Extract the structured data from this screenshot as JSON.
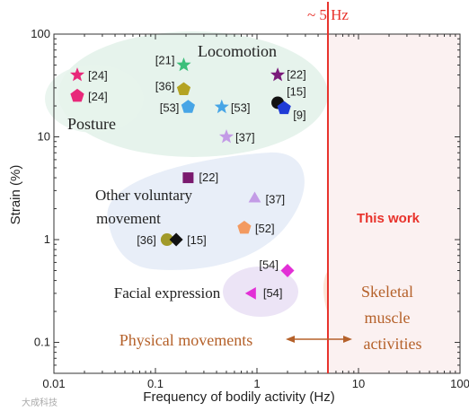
{
  "chart_data": {
    "type": "scatter",
    "xlabel": "Frequency of bodily activity (Hz)",
    "ylabel": "Strain (%)",
    "xscale": "log",
    "yscale": "log",
    "xlim": [
      0.01,
      100
    ],
    "ylim": [
      0.05,
      100
    ],
    "xticks": [
      {
        "value": 0.01,
        "label": "0.01"
      },
      {
        "value": 0.1,
        "label": "0.1"
      },
      {
        "value": 1,
        "label": "1"
      },
      {
        "value": 10,
        "label": "10"
      },
      {
        "value": 100,
        "label": "100"
      }
    ],
    "yticks": [
      {
        "value": 0.1,
        "label": "0.1"
      },
      {
        "value": 1,
        "label": "1"
      },
      {
        "value": 10,
        "label": "10"
      },
      {
        "value": 100,
        "label": "100"
      }
    ],
    "threshold": {
      "x": 5,
      "label": "~ 5 Hz",
      "color": "#e8322b"
    },
    "this_work_label": "This work",
    "regions": [
      {
        "label": "Locomotion",
        "color": "#e6f3ec"
      },
      {
        "label": "Posture",
        "color": "#e6f3ec"
      },
      {
        "label": "Other voluntary",
        "color": "#e8eef8"
      },
      {
        "label": "movement",
        "color": "#e8eef8"
      },
      {
        "label": "Facial expression",
        "color": "#ece4f6"
      },
      {
        "label": "Skeletal",
        "color": "#fbe6d8"
      },
      {
        "label": "muscle",
        "color": "#fbe6d8"
      },
      {
        "label": "activities",
        "color": "#fbe6d8"
      }
    ],
    "physical_movements_label": "Physical movements",
    "points": [
      {
        "x": 0.017,
        "y": 40,
        "marker": "star",
        "color": "#e8287a",
        "label": "[24]"
      },
      {
        "x": 0.017,
        "y": 25,
        "marker": "pentagon",
        "color": "#e8287a",
        "label": "[24]"
      },
      {
        "x": 0.19,
        "y": 50,
        "marker": "star",
        "color": "#3cbf7a",
        "label": "[21]"
      },
      {
        "x": 0.19,
        "y": 29,
        "marker": "pentagon",
        "color": "#b4a323",
        "label": "[36]"
      },
      {
        "x": 0.21,
        "y": 19.5,
        "marker": "pentagon",
        "color": "#47a5e6",
        "label": "[53]"
      },
      {
        "x": 0.45,
        "y": 19.5,
        "marker": "star",
        "color": "#47a5e6",
        "label": "[53]"
      },
      {
        "x": 0.5,
        "y": 10,
        "marker": "star",
        "color": "#c39be6",
        "label": "[37]"
      },
      {
        "x": 1.6,
        "y": 40,
        "marker": "star",
        "color": "#7a1a7a",
        "label": "[22]"
      },
      {
        "x": 1.6,
        "y": 21.5,
        "marker": "circle",
        "color": "#111111",
        "label": "[15]"
      },
      {
        "x": 1.85,
        "y": 19,
        "marker": "pentagon",
        "color": "#1f3bd6",
        "label": "[9]"
      },
      {
        "x": 0.21,
        "y": 4,
        "marker": "square",
        "color": "#7a1a6e",
        "label": "[22]"
      },
      {
        "x": 0.95,
        "y": 2.5,
        "marker": "triangle-up",
        "color": "#c39be6",
        "label": "[37]"
      },
      {
        "x": 0.75,
        "y": 1.3,
        "marker": "pentagon",
        "color": "#f39a60",
        "label": "[52]"
      },
      {
        "x": 0.13,
        "y": 1.0,
        "marker": "circle",
        "color": "#a19a2a",
        "label": "[36]"
      },
      {
        "x": 0.16,
        "y": 1.0,
        "marker": "diamond",
        "color": "#111111",
        "label": "[15]"
      },
      {
        "x": 2.0,
        "y": 0.5,
        "marker": "diamond",
        "color": "#e22fd6",
        "label": "[54]"
      },
      {
        "x": 0.9,
        "y": 0.3,
        "marker": "triangle-left",
        "color": "#e22fd6",
        "label": "[54]"
      }
    ]
  },
  "watermark_text": "大成科技"
}
